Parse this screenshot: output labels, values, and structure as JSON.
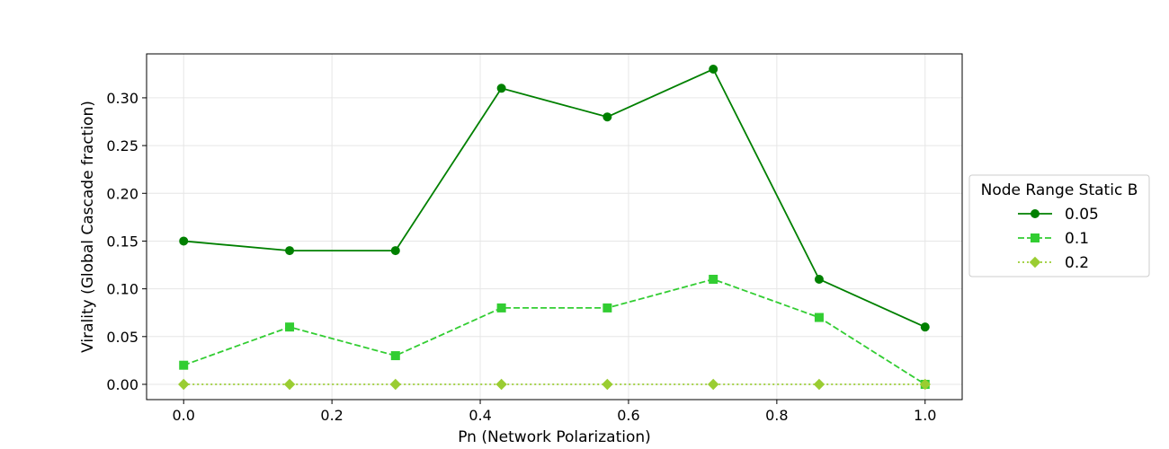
{
  "chart_data": {
    "type": "line",
    "title": "",
    "xlabel": "Pn (Network Polarization)",
    "ylabel": "Virality (Global Cascade fraction)",
    "xlim": [
      -0.05,
      1.05
    ],
    "ylim": [
      -0.016,
      0.346
    ],
    "xticks": [
      0.0,
      0.2,
      0.4,
      0.6,
      0.8,
      1.0
    ],
    "xtick_labels": [
      "0.0",
      "0.2",
      "0.4",
      "0.6",
      "0.8",
      "1.0"
    ],
    "yticks": [
      0.0,
      0.05,
      0.1,
      0.15,
      0.2,
      0.25,
      0.3
    ],
    "ytick_labels": [
      "0.00",
      "0.05",
      "0.10",
      "0.15",
      "0.20",
      "0.25",
      "0.30"
    ],
    "grid": true,
    "legend": {
      "title": "Node Range Static B",
      "placement": "outside-right"
    },
    "x": [
      0.0,
      0.1429,
      0.2857,
      0.4286,
      0.5714,
      0.7143,
      0.8571,
      1.0
    ],
    "series": [
      {
        "name": "0.05",
        "color": "#008000",
        "marker": "circle",
        "linestyle": "solid",
        "values": [
          0.15,
          0.14,
          0.14,
          0.31,
          0.28,
          0.33,
          0.11,
          0.06
        ]
      },
      {
        "name": "0.1",
        "color": "#32cd32",
        "marker": "square",
        "linestyle": "dashed",
        "values": [
          0.02,
          0.06,
          0.03,
          0.08,
          0.08,
          0.11,
          0.07,
          0.0
        ]
      },
      {
        "name": "0.2",
        "color": "#9acd32",
        "marker": "diamond",
        "linestyle": "dotted",
        "values": [
          0.0,
          0.0,
          0.0,
          0.0,
          0.0,
          0.0,
          0.0,
          0.0
        ]
      }
    ]
  }
}
